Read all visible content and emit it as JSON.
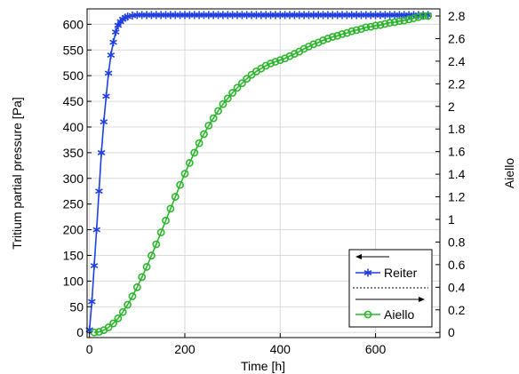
{
  "chart_data": {
    "type": "line",
    "xlabel": "Time [h]",
    "ylabel_left": "Tritium partial pressure [Pa]",
    "ylabel_right": "Aiello",
    "xlim": [
      -5,
      735
    ],
    "ylim_left": [
      -10,
      630
    ],
    "ylim_right": [
      -0.045444,
      2.862976
    ],
    "x_ticks": [
      0,
      200,
      400,
      600
    ],
    "y_ticks_left": [
      0,
      50,
      100,
      150,
      200,
      250,
      300,
      350,
      400,
      450,
      500,
      550,
      600
    ],
    "y_ticks_right": [
      "0",
      "0.2",
      "0.4",
      "0.6",
      "0.8",
      "1",
      "1.2",
      "1.4",
      "1.6",
      "1.8",
      "2",
      "2.2",
      "2.4",
      "2.6",
      "2.8"
    ],
    "grid": true,
    "legend_position": "bottom-right",
    "series": [
      {
        "name": "Reiter",
        "axis": "left",
        "marker": "asterisk",
        "color": "#1f3fe0",
        "x": [
          0,
          5,
          10,
          15,
          20,
          25,
          30,
          35,
          40,
          45,
          50,
          55,
          60,
          65,
          70,
          75,
          80,
          90,
          100,
          110,
          120,
          130,
          140,
          150,
          160,
          170,
          180,
          190,
          200,
          210,
          220,
          230,
          240,
          250,
          260,
          270,
          280,
          290,
          300,
          310,
          320,
          330,
          340,
          350,
          360,
          370,
          380,
          390,
          400,
          410,
          420,
          430,
          440,
          450,
          460,
          470,
          480,
          490,
          500,
          510,
          520,
          530,
          540,
          550,
          560,
          570,
          580,
          590,
          600,
          610,
          620,
          630,
          640,
          650,
          660,
          670,
          680,
          690,
          700,
          710
        ],
        "y": [
          5,
          60,
          130,
          200,
          275,
          350,
          410,
          460,
          505,
          540,
          565,
          585,
          598,
          605,
          610,
          613,
          615,
          617,
          618,
          618,
          618,
          618,
          618,
          618,
          618,
          618,
          618,
          618,
          618,
          618,
          618,
          618,
          618,
          618,
          618,
          618,
          618,
          618,
          618,
          618,
          618,
          618,
          618,
          618,
          618,
          618,
          618,
          618,
          618,
          618,
          618,
          618,
          618,
          618,
          618,
          618,
          618,
          618,
          618,
          618,
          618,
          618,
          618,
          618,
          618,
          618,
          618,
          618,
          618,
          618,
          618,
          618,
          618,
          618,
          618,
          618,
          618,
          618,
          618,
          618
        ]
      },
      {
        "name": "Aiello",
        "axis": "right",
        "marker": "circle",
        "color": "#2db52d",
        "x": [
          10,
          20,
          30,
          40,
          50,
          60,
          70,
          80,
          90,
          100,
          110,
          120,
          130,
          140,
          150,
          160,
          170,
          180,
          190,
          200,
          210,
          220,
          230,
          240,
          250,
          260,
          270,
          280,
          290,
          300,
          310,
          320,
          330,
          340,
          350,
          360,
          370,
          380,
          390,
          400,
          410,
          420,
          430,
          440,
          450,
          460,
          470,
          480,
          490,
          500,
          510,
          520,
          530,
          540,
          550,
          560,
          570,
          580,
          590,
          600,
          610,
          620,
          630,
          640,
          650,
          660,
          670,
          680,
          690,
          700,
          710
        ],
        "y": [
          0.0,
          0.005,
          0.02,
          0.045,
          0.08,
          0.125,
          0.18,
          0.245,
          0.32,
          0.4,
          0.49,
          0.58,
          0.68,
          0.78,
          0.885,
          0.99,
          1.095,
          1.2,
          1.305,
          1.405,
          1.5,
          1.59,
          1.675,
          1.755,
          1.83,
          1.895,
          1.96,
          2.02,
          2.07,
          2.12,
          2.165,
          2.205,
          2.245,
          2.28,
          2.31,
          2.335,
          2.36,
          2.38,
          2.395,
          2.41,
          2.425,
          2.445,
          2.465,
          2.485,
          2.51,
          2.53,
          2.55,
          2.565,
          2.585,
          2.6,
          2.615,
          2.625,
          2.64,
          2.65,
          2.665,
          2.675,
          2.685,
          2.7,
          2.705,
          2.715,
          2.72,
          2.73,
          2.74,
          2.745,
          2.755,
          2.76,
          2.77,
          2.78,
          2.79,
          2.8,
          2.8
        ]
      }
    ]
  }
}
